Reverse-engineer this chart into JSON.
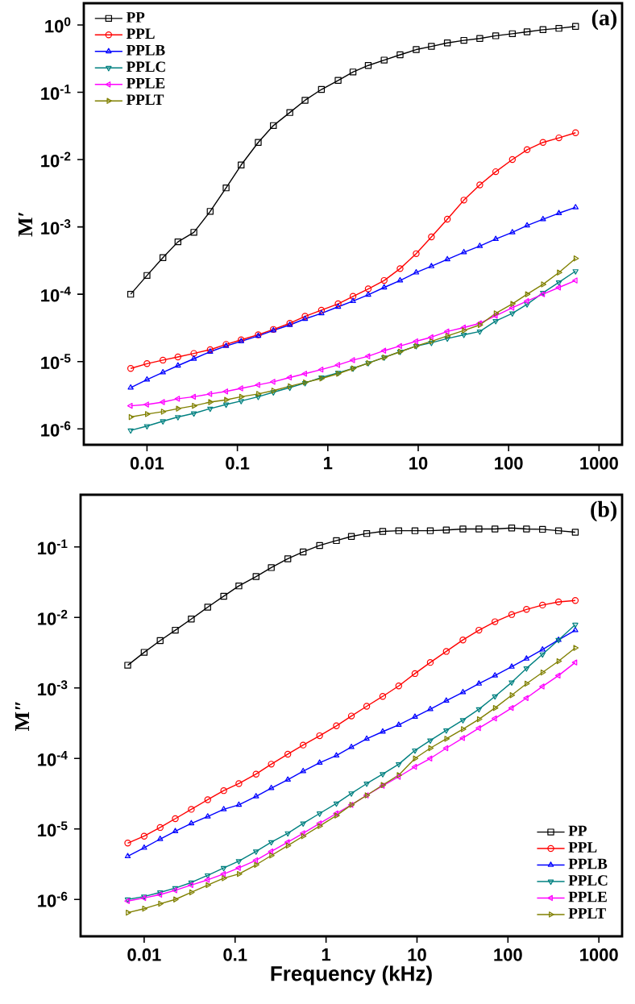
{
  "chart_data": [
    {
      "type": "line",
      "ylabel": "M′",
      "annotations": [
        "(a)"
      ],
      "log": "xy",
      "legend": "top left",
      "x": [
        0.0066,
        0.01,
        0.015,
        0.022,
        0.033,
        0.05,
        0.075,
        0.11,
        0.17,
        0.25,
        0.38,
        0.56,
        0.85,
        1.3,
        1.9,
        2.8,
        4.2,
        6.3,
        9.5,
        14,
        21,
        32,
        48,
        72,
        110,
        160,
        240,
        360,
        550
      ],
      "xlim": [
        0.002,
        1800
      ],
      "ylim": [
        5.8e-07,
        2.1
      ],
      "xticks": [
        0.01,
        0.1,
        1,
        10,
        100,
        1000
      ],
      "yticks": [
        {
          "value": 1e-06,
          "label": "10$^{-6}$"
        },
        {
          "value": 1e-05,
          "label": "10$^{-5}$"
        },
        {
          "value": 0.0001,
          "label": "10$^{-4}$"
        },
        {
          "value": 0.001,
          "label": "10$^{-3}$"
        },
        {
          "value": 0.01,
          "label": "10$^{-2}$"
        },
        {
          "value": 0.1,
          "label": "10$^{-1}$"
        },
        {
          "value": 1,
          "label": "10$^{0}$"
        }
      ],
      "series": [
        {
          "name": "PP",
          "color": "#000000",
          "marker": "square",
          "values": [
            0.0001,
            0.00019,
            0.00035,
            0.0006,
            0.00083,
            0.0017,
            0.0038,
            0.0083,
            0.018,
            0.032,
            0.05,
            0.076,
            0.11,
            0.15,
            0.2,
            0.25,
            0.3,
            0.36,
            0.43,
            0.48,
            0.54,
            0.59,
            0.63,
            0.69,
            0.74,
            0.79,
            0.85,
            0.89,
            0.95
          ]
        },
        {
          "name": "PPL",
          "color": "#ff0000",
          "marker": "circle",
          "values": [
            7.9e-06,
            9.3e-06,
            1.05e-05,
            1.17e-05,
            1.32e-05,
            1.5e-05,
            1.8e-05,
            2.1e-05,
            2.5e-05,
            3e-05,
            3.7e-05,
            4.7e-05,
            5.8e-05,
            7.2e-05,
            9.3e-05,
            0.00012,
            0.00016,
            0.00024,
            0.0004,
            0.00071,
            0.0013,
            0.0025,
            0.0042,
            0.0066,
            0.01,
            0.014,
            0.018,
            0.021,
            0.025
          ]
        },
        {
          "name": "PPLB",
          "color": "#0000ff",
          "marker": "triangle",
          "values": [
            4.1e-06,
            5.4e-06,
            6.9e-06,
            8.7e-06,
            1.1e-05,
            1.4e-05,
            1.7e-05,
            2e-05,
            2.4e-05,
            2.9e-05,
            3.5e-05,
            4.3e-05,
            5.2e-05,
            6.5e-05,
            7.9e-05,
            9.8e-05,
            0.000126,
            0.00016,
            0.00021,
            0.00026,
            0.00033,
            0.00042,
            0.00052,
            0.00066,
            0.00083,
            0.00105,
            0.0013,
            0.0016,
            0.00195
          ]
        },
        {
          "name": "PPLC",
          "color": "#008080",
          "marker": "triangle-down",
          "values": [
            9.5e-07,
            1.1e-06,
            1.3e-06,
            1.5e-06,
            1.7e-06,
            2e-06,
            2.3e-06,
            2.6e-06,
            3e-06,
            3.5e-06,
            4.1e-06,
            4.8e-06,
            5.8e-06,
            6.8e-06,
            7.9e-06,
            9.5e-06,
            1.15e-05,
            1.4e-05,
            1.7e-05,
            1.9e-05,
            2.2e-05,
            2.5e-05,
            2.8e-05,
            4e-05,
            5.2e-05,
            7.1e-05,
            0.000105,
            0.00015,
            0.00022
          ]
        },
        {
          "name": "PPLE",
          "color": "#ff00ff",
          "marker": "triangle-left",
          "values": [
            2.2e-06,
            2.3e-06,
            2.5e-06,
            2.8e-06,
            3e-06,
            3.3e-06,
            3.6e-06,
            4e-06,
            4.5e-06,
            5e-06,
            5.8e-06,
            6.6e-06,
            7.6e-06,
            8.9e-06,
            1.05e-05,
            1.2e-05,
            1.45e-05,
            1.7e-05,
            2e-05,
            2.3e-05,
            2.8e-05,
            3.2e-05,
            3.7e-05,
            4.8e-05,
            6.3e-05,
            7.9e-05,
            0.0001,
            0.000126,
            0.00016
          ]
        },
        {
          "name": "PPLT",
          "color": "#808000",
          "marker": "triangle-right",
          "values": [
            1.5e-06,
            1.66e-06,
            1.8e-06,
            2e-06,
            2.2e-06,
            2.5e-06,
            2.7e-06,
            3e-06,
            3.3e-06,
            3.7e-06,
            4.3e-06,
            4.9e-06,
            5.6e-06,
            6.6e-06,
            7.9e-06,
            9.5e-06,
            1.15e-05,
            1.4e-05,
            1.7e-05,
            2e-05,
            2.4e-05,
            2.9e-05,
            3.5e-05,
            5.2e-05,
            7.2e-05,
            0.0001,
            0.00014,
            0.00021,
            0.00034
          ]
        }
      ]
    },
    {
      "type": "line",
      "xlabel": "Frequency (kHz)",
      "ylabel": "M″",
      "annotations": [
        "(b)"
      ],
      "log": "xy",
      "legend": "bottom right",
      "x": [
        0.0066,
        0.01,
        0.015,
        0.022,
        0.033,
        0.05,
        0.075,
        0.11,
        0.17,
        0.25,
        0.38,
        0.56,
        0.85,
        1.3,
        1.9,
        2.8,
        4.2,
        6.3,
        9.5,
        14,
        21,
        32,
        48,
        72,
        110,
        160,
        240,
        360,
        550
      ],
      "xlim": [
        0.002,
        1800
      ],
      "ylim": [
        3e-07,
        0.55
      ],
      "xticks": [
        0.01,
        0.1,
        1,
        10,
        100,
        1000
      ],
      "yticks": [
        {
          "value": 1e-06,
          "label": "10$^{-6}$"
        },
        {
          "value": 1e-05,
          "label": "10$^{-5}$"
        },
        {
          "value": 0.0001,
          "label": "10$^{-4}$"
        },
        {
          "value": 0.001,
          "label": "10$^{-3}$"
        },
        {
          "value": 0.01,
          "label": "10$^{-2}$"
        },
        {
          "value": 0.1,
          "label": "10$^{-1}$"
        }
      ],
      "series": [
        {
          "name": "PP",
          "color": "#000000",
          "marker": "square",
          "values": [
            0.0021,
            0.0032,
            0.0047,
            0.0066,
            0.0095,
            0.014,
            0.02,
            0.028,
            0.038,
            0.051,
            0.068,
            0.085,
            0.105,
            0.123,
            0.141,
            0.155,
            0.166,
            0.17,
            0.17,
            0.17,
            0.174,
            0.18,
            0.18,
            0.18,
            0.186,
            0.18,
            0.178,
            0.17,
            0.162
          ]
        },
        {
          "name": "PPL",
          "color": "#ff0000",
          "marker": "circle",
          "values": [
            6.3e-06,
            7.9e-06,
            1.05e-05,
            1.4e-05,
            1.9e-05,
            2.6e-05,
            3.5e-05,
            4.4e-05,
            6e-05,
            8.3e-05,
            0.000115,
            0.000155,
            0.00021,
            0.00029,
            0.0004,
            0.00055,
            0.00076,
            0.00107,
            0.0016,
            0.0023,
            0.0033,
            0.0048,
            0.0066,
            0.0087,
            0.011,
            0.013,
            0.015,
            0.0166,
            0.0174
          ]
        },
        {
          "name": "PPLB",
          "color": "#0000ff",
          "marker": "triangle",
          "values": [
            4.1e-06,
            5.4e-06,
            7.2e-06,
            9.3e-06,
            1.2e-05,
            1.5e-05,
            1.9e-05,
            2.2e-05,
            2.9e-05,
            3.8e-05,
            5e-05,
            6.6e-05,
            8.7e-05,
            0.00011,
            0.000145,
            0.00019,
            0.00024,
            0.0003,
            0.00039,
            0.0005,
            0.00066,
            0.00087,
            0.00115,
            0.0015,
            0.002,
            0.0026,
            0.0035,
            0.0048,
            0.0066
          ]
        },
        {
          "name": "PPLC",
          "color": "#008080",
          "marker": "triangle-down",
          "values": [
            1e-06,
            1.1e-06,
            1.26e-06,
            1.45e-06,
            1.74e-06,
            2.2e-06,
            2.8e-06,
            3.5e-06,
            4.8e-06,
            6.5e-06,
            8.7e-06,
            1.2e-05,
            1.66e-05,
            2.3e-05,
            3.2e-05,
            4.4e-05,
            6e-05,
            8.3e-05,
            0.00013,
            0.00018,
            0.00025,
            0.00035,
            0.0005,
            0.00076,
            0.0012,
            0.0019,
            0.003,
            0.0048,
            0.0079
          ]
        },
        {
          "name": "PPLE",
          "color": "#ff00ff",
          "marker": "triangle-left",
          "values": [
            9.5e-07,
            1.05e-06,
            1.17e-06,
            1.35e-06,
            1.6e-06,
            1.9e-06,
            2.3e-06,
            2.8e-06,
            3.6e-06,
            4.8e-06,
            6.5e-06,
            8.7e-06,
            1.2e-05,
            1.66e-05,
            2.2e-05,
            3e-05,
            4.1e-05,
            5.5e-05,
            7.6e-05,
            0.0001,
            0.00014,
            0.000195,
            0.00027,
            0.00037,
            0.00052,
            0.00072,
            0.00105,
            0.0015,
            0.0023
          ]
        },
        {
          "name": "PPLT",
          "color": "#808000",
          "marker": "triangle-right",
          "values": [
            6.5e-07,
            7.4e-07,
            8.7e-07,
            1e-06,
            1.26e-06,
            1.6e-06,
            2e-06,
            2.3e-06,
            3.1e-06,
            4.2e-06,
            5.8e-06,
            7.9e-06,
            1.1e-05,
            1.55e-05,
            2.2e-05,
            3e-05,
            4.2e-05,
            5.8e-05,
            0.0001,
            0.00014,
            0.00019,
            0.00026,
            0.00036,
            0.00052,
            0.00079,
            0.00115,
            0.00166,
            0.0024,
            0.0037
          ]
        }
      ]
    }
  ]
}
